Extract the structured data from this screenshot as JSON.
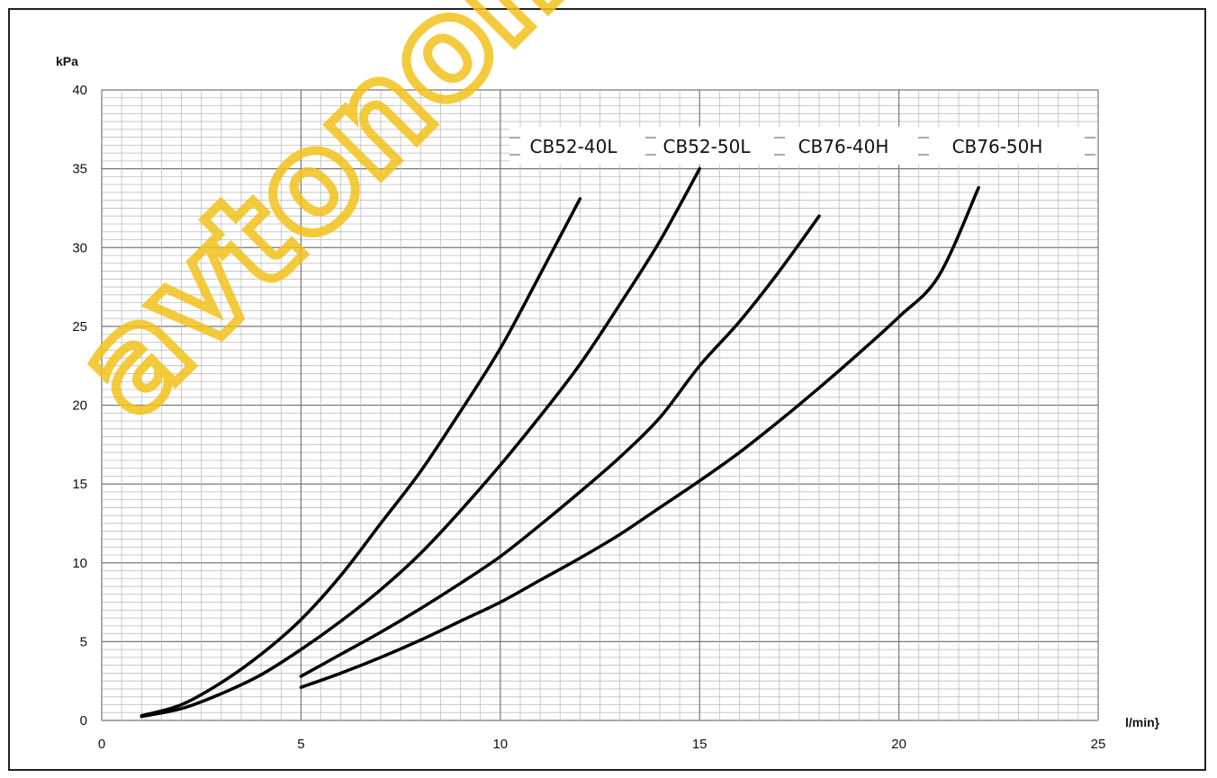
{
  "chart_data": {
    "type": "line",
    "title": "",
    "xlabel": "l/min}",
    "ylabel": "kPa",
    "xlim": [
      0,
      25
    ],
    "ylim": [
      0,
      40
    ],
    "x_ticks": [
      0,
      5,
      10,
      15,
      20,
      25
    ],
    "y_ticks": [
      0,
      5,
      10,
      15,
      20,
      25,
      30,
      35,
      40
    ],
    "grid": true,
    "legend_position": "top-right (inline labels)",
    "series": [
      {
        "name": "CB52-40L",
        "x": [
          1,
          2,
          3,
          4,
          5,
          6,
          7,
          8,
          9,
          10,
          11,
          12
        ],
        "y": [
          0.3,
          1.0,
          2.4,
          4.2,
          6.4,
          9.2,
          12.5,
          15.8,
          19.6,
          23.6,
          28.3,
          33.1
        ]
      },
      {
        "name": "CB52-50L",
        "x": [
          1,
          2,
          3,
          4,
          5,
          6,
          7,
          8,
          9,
          10,
          11,
          12,
          13,
          14,
          15
        ],
        "y": [
          0.25,
          0.75,
          1.7,
          2.9,
          4.5,
          6.3,
          8.3,
          10.6,
          13.3,
          16.2,
          19.3,
          22.6,
          26.4,
          30.4,
          35.0
        ]
      },
      {
        "name": "CB76-40H",
        "x": [
          5,
          6,
          7,
          8,
          9,
          10,
          11,
          12,
          13,
          14,
          15,
          16,
          17,
          18
        ],
        "y": [
          2.8,
          4.2,
          5.6,
          7.1,
          8.7,
          10.4,
          12.4,
          14.5,
          16.7,
          19.2,
          22.5,
          25.3,
          28.5,
          32.0
        ]
      },
      {
        "name": "CB76-50H",
        "x": [
          5,
          6,
          7,
          8,
          9,
          10,
          11,
          12,
          13,
          14,
          15,
          16,
          17,
          18,
          19,
          20,
          21,
          22
        ],
        "y": [
          2.1,
          3.0,
          4.0,
          5.1,
          6.3,
          7.5,
          8.9,
          10.3,
          11.8,
          13.5,
          15.2,
          17.0,
          19.0,
          21.1,
          23.3,
          25.6,
          28.2,
          33.8
        ]
      }
    ],
    "colors": {
      "line": "#000000",
      "major_grid": "#777777",
      "minor_grid": "#bdbdbd",
      "watermark": "#f2c21b"
    }
  },
  "watermark": "avtonom"
}
